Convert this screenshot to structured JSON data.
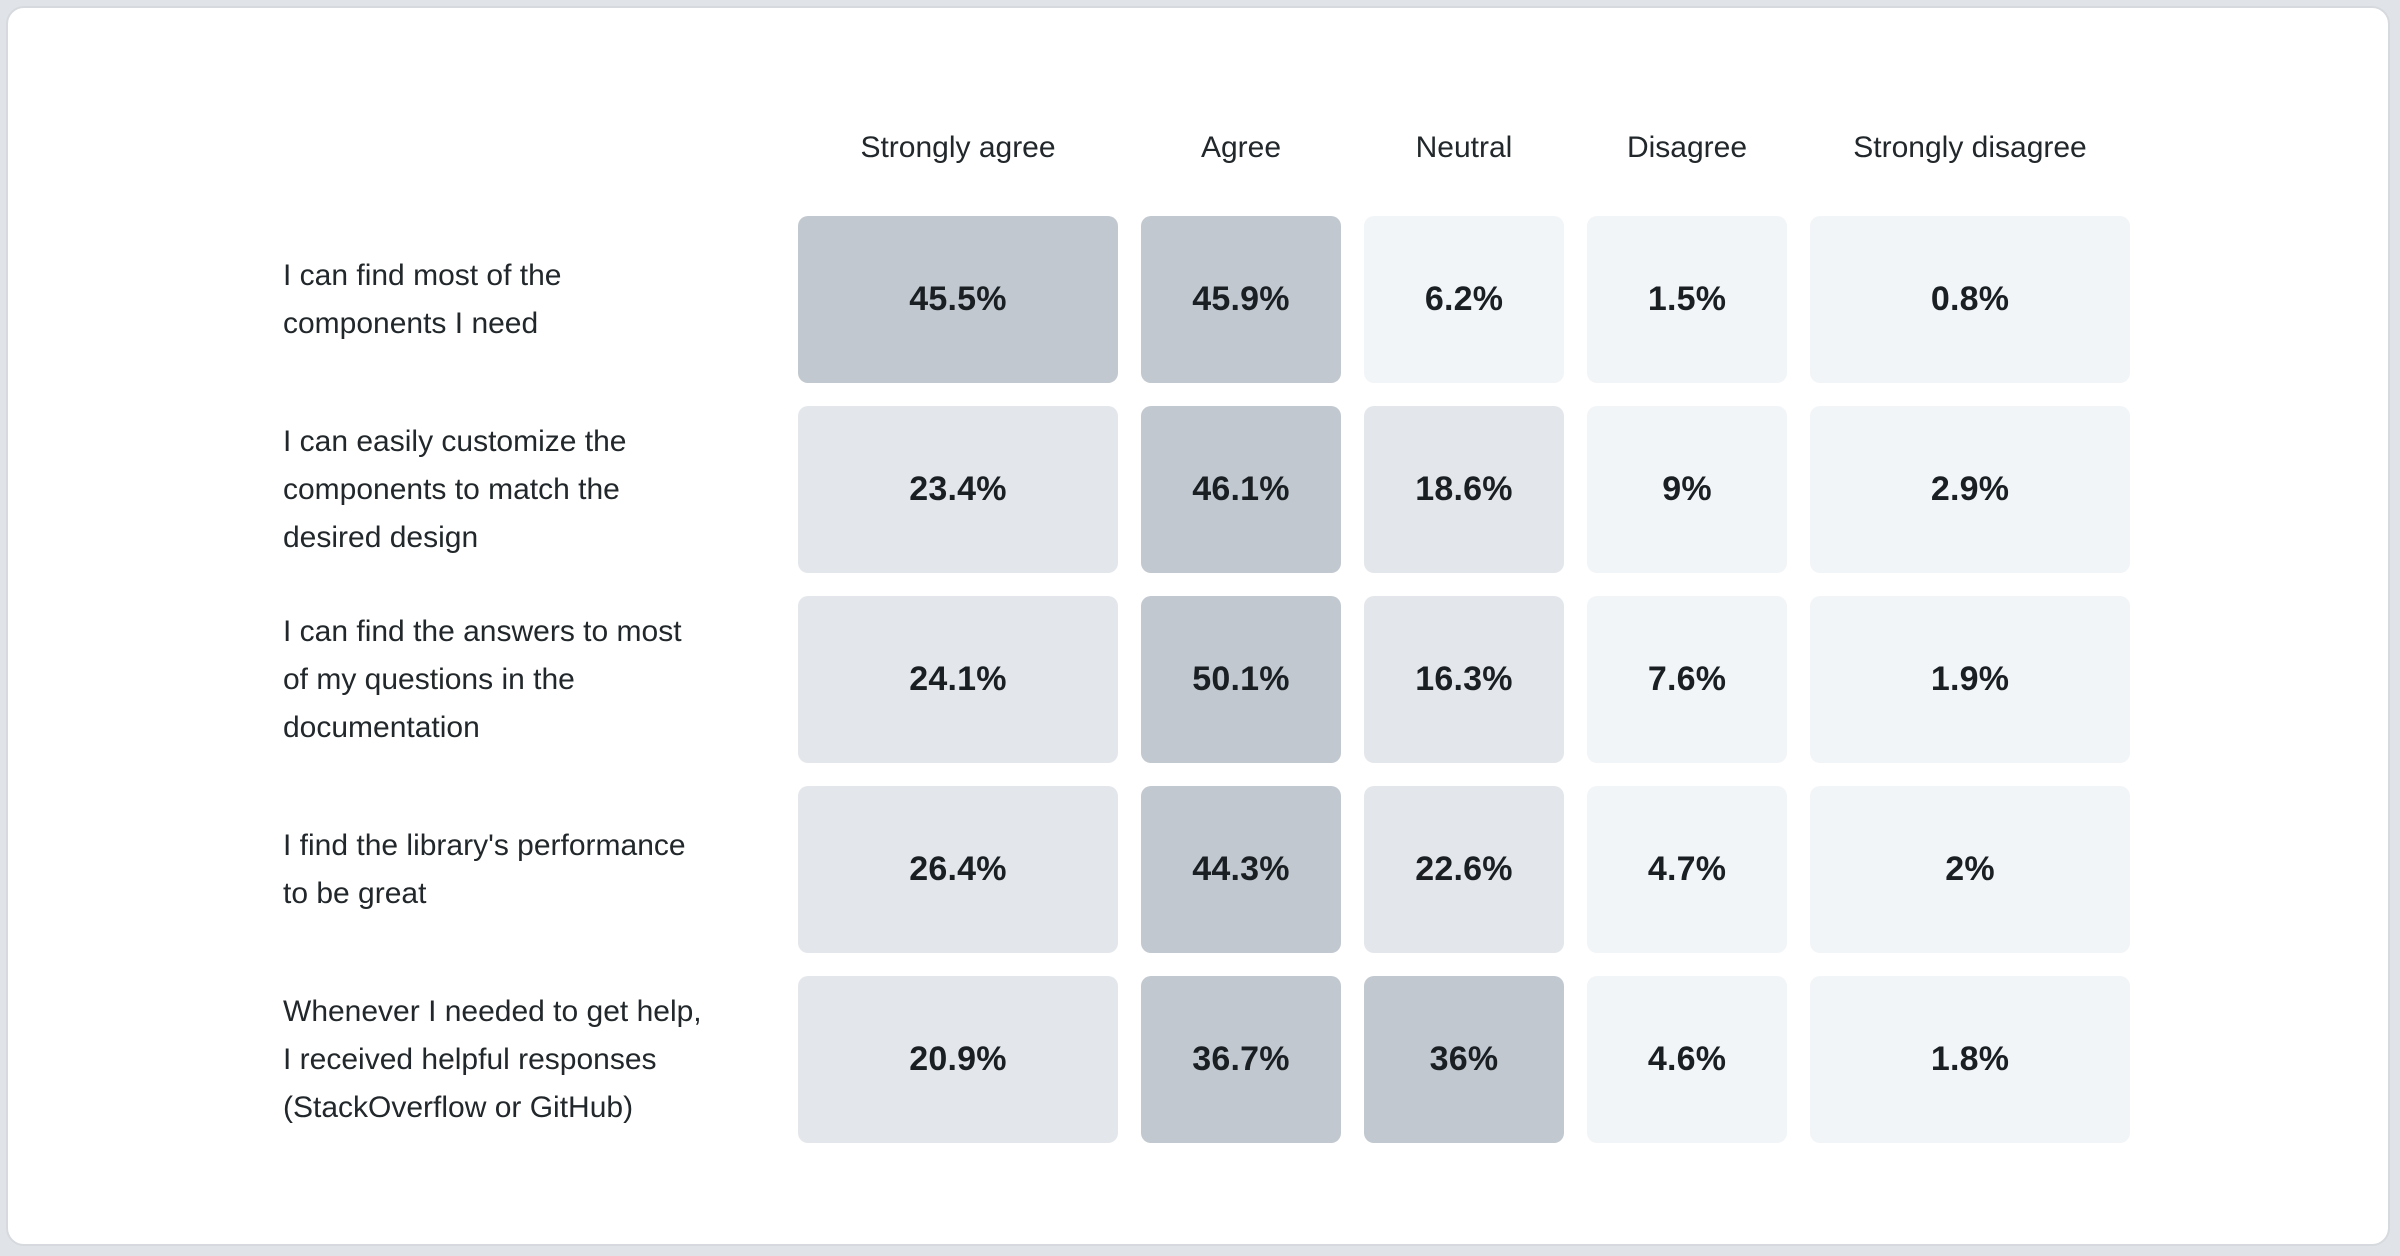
{
  "card": {
    "background": "#ffffff",
    "border_color": "#d6dade",
    "page_background": "#e0e3e7"
  },
  "survey": {
    "columns": [
      "Strongly agree",
      "Agree",
      "Neutral",
      "Disagree",
      "Strongly disagree"
    ],
    "rows": [
      {
        "label": "I can find most of the\ncomponents I need",
        "values": [
          45.5,
          45.9,
          6.2,
          1.5,
          0.8
        ],
        "display": [
          "45.5%",
          "45.9%",
          "6.2%",
          "1.5%",
          "0.8%"
        ]
      },
      {
        "label": "I can easily customize the\ncomponents to match the\ndesired design",
        "values": [
          23.4,
          46.1,
          18.6,
          9,
          2.9
        ],
        "display": [
          "23.4%",
          "46.1%",
          "18.6%",
          "9%",
          "2.9%"
        ]
      },
      {
        "label": "I can find the answers to most\nof my questions in the\ndocumentation",
        "values": [
          24.1,
          50.1,
          16.3,
          7.6,
          1.9
        ],
        "display": [
          "24.1%",
          "50.1%",
          "16.3%",
          "7.6%",
          "1.9%"
        ]
      },
      {
        "label": "I find the library's performance\nto be great",
        "values": [
          26.4,
          44.3,
          22.6,
          4.7,
          2
        ],
        "display": [
          "26.4%",
          "44.3%",
          "22.6%",
          "4.7%",
          "2%"
        ]
      },
      {
        "label": "Whenever I needed to get help,\nI received helpful responses\n(StackOverflow or GitHub)",
        "values": [
          20.9,
          36.7,
          36,
          4.6,
          1.8
        ],
        "display": [
          "20.9%",
          "36.7%",
          "36%",
          "4.6%",
          "1.8%"
        ]
      }
    ],
    "color_scale": [
      {
        "min": 30,
        "color": "#c1c8cf"
      },
      {
        "min": 10,
        "color": "#e3e7eb"
      },
      {
        "min": 0,
        "color": "#f2f5f8"
      }
    ],
    "text_color": "#21272a",
    "value_color": "#1a1f24"
  },
  "chart_data": {
    "type": "heatmap",
    "title": "",
    "x_categories": [
      "Strongly agree",
      "Agree",
      "Neutral",
      "Disagree",
      "Strongly disagree"
    ],
    "y_categories": [
      "I can find most of the components I need",
      "I can easily customize the components to match the desired design",
      "I can find the answers to most of my questions in the documentation",
      "I find the library's performance to be great",
      "Whenever I needed to get help, I received helpful responses (StackOverflow or GitHub)"
    ],
    "values": [
      [
        45.5,
        45.9,
        6.2,
        1.5,
        0.8
      ],
      [
        23.4,
        46.1,
        18.6,
        9,
        2.9
      ],
      [
        24.1,
        50.1,
        16.3,
        7.6,
        1.9
      ],
      [
        26.4,
        44.3,
        22.6,
        4.7,
        2
      ],
      [
        20.9,
        36.7,
        36,
        4.6,
        1.8
      ]
    ],
    "value_unit": "%",
    "legend_position": "none",
    "grid": false
  }
}
